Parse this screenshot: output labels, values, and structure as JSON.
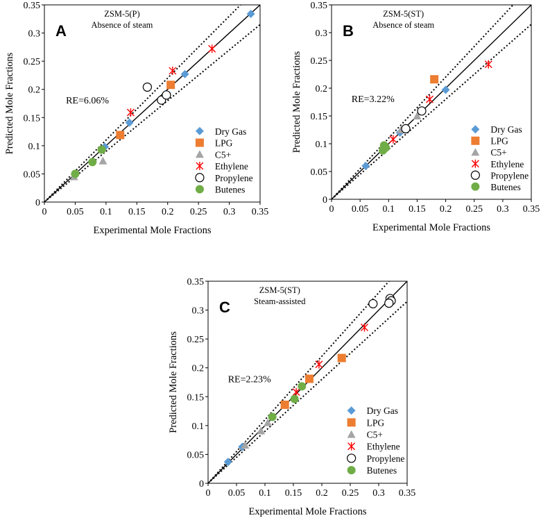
{
  "chart_data": [
    {
      "type": "scatter",
      "panel_label": "A",
      "title": "ZSM-5(P)",
      "subtitle": "Absence of steam",
      "xlabel": "Experimental Mole Fractions",
      "ylabel": "Predicted Mole Fractions",
      "xlim": [
        0,
        0.35
      ],
      "ylim": [
        0,
        0.35
      ],
      "x_ticks": [
        "0",
        "0.05",
        "0.1",
        "0.15",
        "0.2",
        "0.25",
        "0.3",
        "0.35"
      ],
      "y_ticks": [
        "0",
        "0.05",
        "0.1",
        "0.15",
        "0.2",
        "0.25",
        "0.3",
        "0.35"
      ],
      "re_label": "RE=6.06%",
      "legend_position": "bottom-right",
      "reference_lines": [
        {
          "style": "solid",
          "slope": 1.0
        },
        {
          "style": "dotted",
          "slope": 1.1
        },
        {
          "style": "dotted",
          "slope": 0.9
        }
      ],
      "series": [
        {
          "name": "Dry Gas",
          "marker": "diamond",
          "color": "#5b9bd5",
          "x": [
            0.335,
            0.228,
            0.138,
            0.098
          ],
          "y": [
            0.334,
            0.227,
            0.141,
            0.098
          ]
        },
        {
          "name": "LPG",
          "marker": "square",
          "color": "#ed7d31",
          "x": [
            0.205,
            0.123
          ],
          "y": [
            0.208,
            0.119
          ]
        },
        {
          "name": "C5+",
          "marker": "triangle",
          "color": "#a5a5a5",
          "x": [
            0.095,
            0.048
          ],
          "y": [
            0.073,
            0.045
          ]
        },
        {
          "name": "Ethylene",
          "marker": "star",
          "color": "#ff0000",
          "x": [
            0.272,
            0.208,
            0.14
          ],
          "y": [
            0.272,
            0.233,
            0.159
          ]
        },
        {
          "name": "Propylene",
          "marker": "open-circle",
          "color": "#000000",
          "x": [
            0.167,
            0.19,
            0.198
          ],
          "y": [
            0.204,
            0.181,
            0.19
          ]
        },
        {
          "name": "Butenes",
          "marker": "circle",
          "color": "#70ad47",
          "x": [
            0.05,
            0.078,
            0.093
          ],
          "y": [
            0.05,
            0.071,
            0.093
          ]
        }
      ]
    },
    {
      "type": "scatter",
      "panel_label": "B",
      "title": "ZSM-5(ST)",
      "subtitle": "Absence of steam",
      "xlabel": "Experimental Mole Fractions",
      "ylabel": "Predicted Mole Fractions",
      "xlim": [
        0,
        0.35
      ],
      "ylim": [
        0,
        0.35
      ],
      "x_ticks": [
        "0",
        "0.05",
        "0.1",
        "0.15",
        "0.2",
        "0.25",
        "0.3",
        "0.35"
      ],
      "y_ticks": [
        "0",
        "0.05",
        "0.1",
        "0.15",
        "0.2",
        "0.25",
        "0.3",
        "0.35"
      ],
      "re_label": "RE=3.22%",
      "legend_position": "bottom-right",
      "reference_lines": [
        {
          "style": "solid",
          "slope": 1.0
        },
        {
          "style": "dotted",
          "slope": 1.1
        },
        {
          "style": "dotted",
          "slope": 0.9
        }
      ],
      "series": [
        {
          "name": "Dry Gas",
          "marker": "diamond",
          "color": "#5b9bd5",
          "x": [
            0.2,
            0.06,
            0.12
          ],
          "y": [
            0.197,
            0.06,
            0.12
          ]
        },
        {
          "name": "LPG",
          "marker": "square",
          "color": "#ed7d31",
          "x": [
            0.18
          ],
          "y": [
            0.216
          ]
        },
        {
          "name": "C5+",
          "marker": "triangle",
          "color": "#a5a5a5",
          "x": [
            0.15,
            0.122
          ],
          "y": [
            0.15,
            0.125
          ]
        },
        {
          "name": "Ethylene",
          "marker": "star",
          "color": "#ff0000",
          "x": [
            0.275,
            0.172,
            0.108
          ],
          "y": [
            0.243,
            0.18,
            0.108
          ]
        },
        {
          "name": "Propylene",
          "marker": "open-circle",
          "color": "#000000",
          "x": [
            0.158,
            0.13
          ],
          "y": [
            0.159,
            0.127
          ]
        },
        {
          "name": "Butenes",
          "marker": "circle",
          "color": "#70ad47",
          "x": [
            0.09,
            0.095,
            0.092
          ],
          "y": [
            0.088,
            0.093,
            0.097
          ]
        }
      ]
    },
    {
      "type": "scatter",
      "panel_label": "C",
      "title": "ZSM-5(ST)",
      "subtitle": "Steam-assisted",
      "xlabel": "Experimental Mole Fractions",
      "ylabel": "Predicted Mole Fractions",
      "xlim": [
        0,
        0.35
      ],
      "ylim": [
        0,
        0.35
      ],
      "x_ticks": [
        "0",
        "0.05",
        "0.1",
        "0.15",
        "0.2",
        "0.25",
        "0.3",
        "0.35"
      ],
      "y_ticks": [
        "0",
        "0.05",
        "0.1",
        "0.15",
        "0.2",
        "0.25",
        "0.3",
        "0.35"
      ],
      "re_label": "RE=2.23%",
      "legend_position": "bottom-right",
      "reference_lines": [
        {
          "style": "solid",
          "slope": 1.0
        },
        {
          "style": "dotted",
          "slope": 1.1
        },
        {
          "style": "dotted",
          "slope": 0.9
        }
      ],
      "series": [
        {
          "name": "Dry Gas",
          "marker": "diamond",
          "color": "#5b9bd5",
          "x": [
            0.035,
            0.06
          ],
          "y": [
            0.037,
            0.063
          ]
        },
        {
          "name": "LPG",
          "marker": "square",
          "color": "#ed7d31",
          "x": [
            0.235,
            0.178,
            0.135
          ],
          "y": [
            0.217,
            0.181,
            0.136
          ]
        },
        {
          "name": "C5+",
          "marker": "triangle",
          "color": "#a5a5a5",
          "x": [
            0.065,
            0.093,
            0.105
          ],
          "y": [
            0.066,
            0.091,
            0.105
          ]
        },
        {
          "name": "Ethylene",
          "marker": "star",
          "color": "#ff0000",
          "x": [
            0.275,
            0.195,
            0.155
          ],
          "y": [
            0.27,
            0.206,
            0.158
          ]
        },
        {
          "name": "Propylene",
          "marker": "open-circle",
          "color": "#000000",
          "x": [
            0.29,
            0.32,
            0.322,
            0.318
          ],
          "y": [
            0.311,
            0.32,
            0.316,
            0.312
          ]
        },
        {
          "name": "Butenes",
          "marker": "circle",
          "color": "#70ad47",
          "x": [
            0.113,
            0.152,
            0.165
          ],
          "y": [
            0.115,
            0.146,
            0.168
          ]
        }
      ]
    }
  ]
}
